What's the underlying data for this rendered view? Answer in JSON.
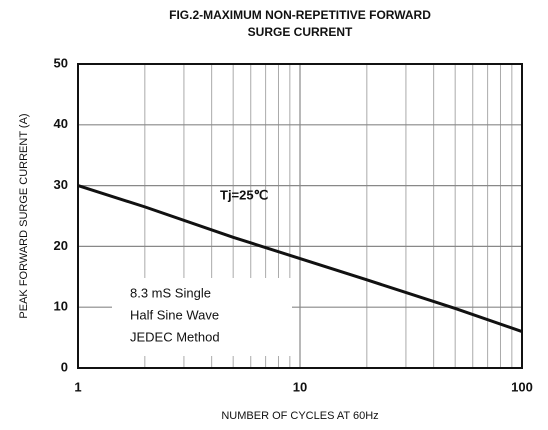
{
  "chart_data": {
    "type": "line",
    "title": [
      "FIG.2-MAXIMUM NON-REPETITIVE FORWARD",
      "SURGE CURRENT"
    ],
    "x_label": "NUMBER OF CYCLES AT 60Hz",
    "y_label": "PEAK FORWARD SURGE CURRENT (A)",
    "x": [
      1,
      2,
      5,
      10,
      20,
      50,
      100
    ],
    "series": [
      {
        "name": "Tj=25℃",
        "color": "#111111",
        "values": [
          30,
          26.5,
          21.5,
          18,
          14.5,
          9.8,
          6
        ]
      }
    ],
    "xlim": [
      1,
      100
    ],
    "xticks": [
      1,
      10,
      100
    ],
    "xscale": "log",
    "ylim": [
      0,
      50
    ],
    "yticks": [
      0,
      10,
      20,
      30,
      40,
      50
    ],
    "grid": true,
    "annotations": [
      "8.3 mS Single",
      "Half Sine Wave",
      "JEDEC Method"
    ]
  }
}
